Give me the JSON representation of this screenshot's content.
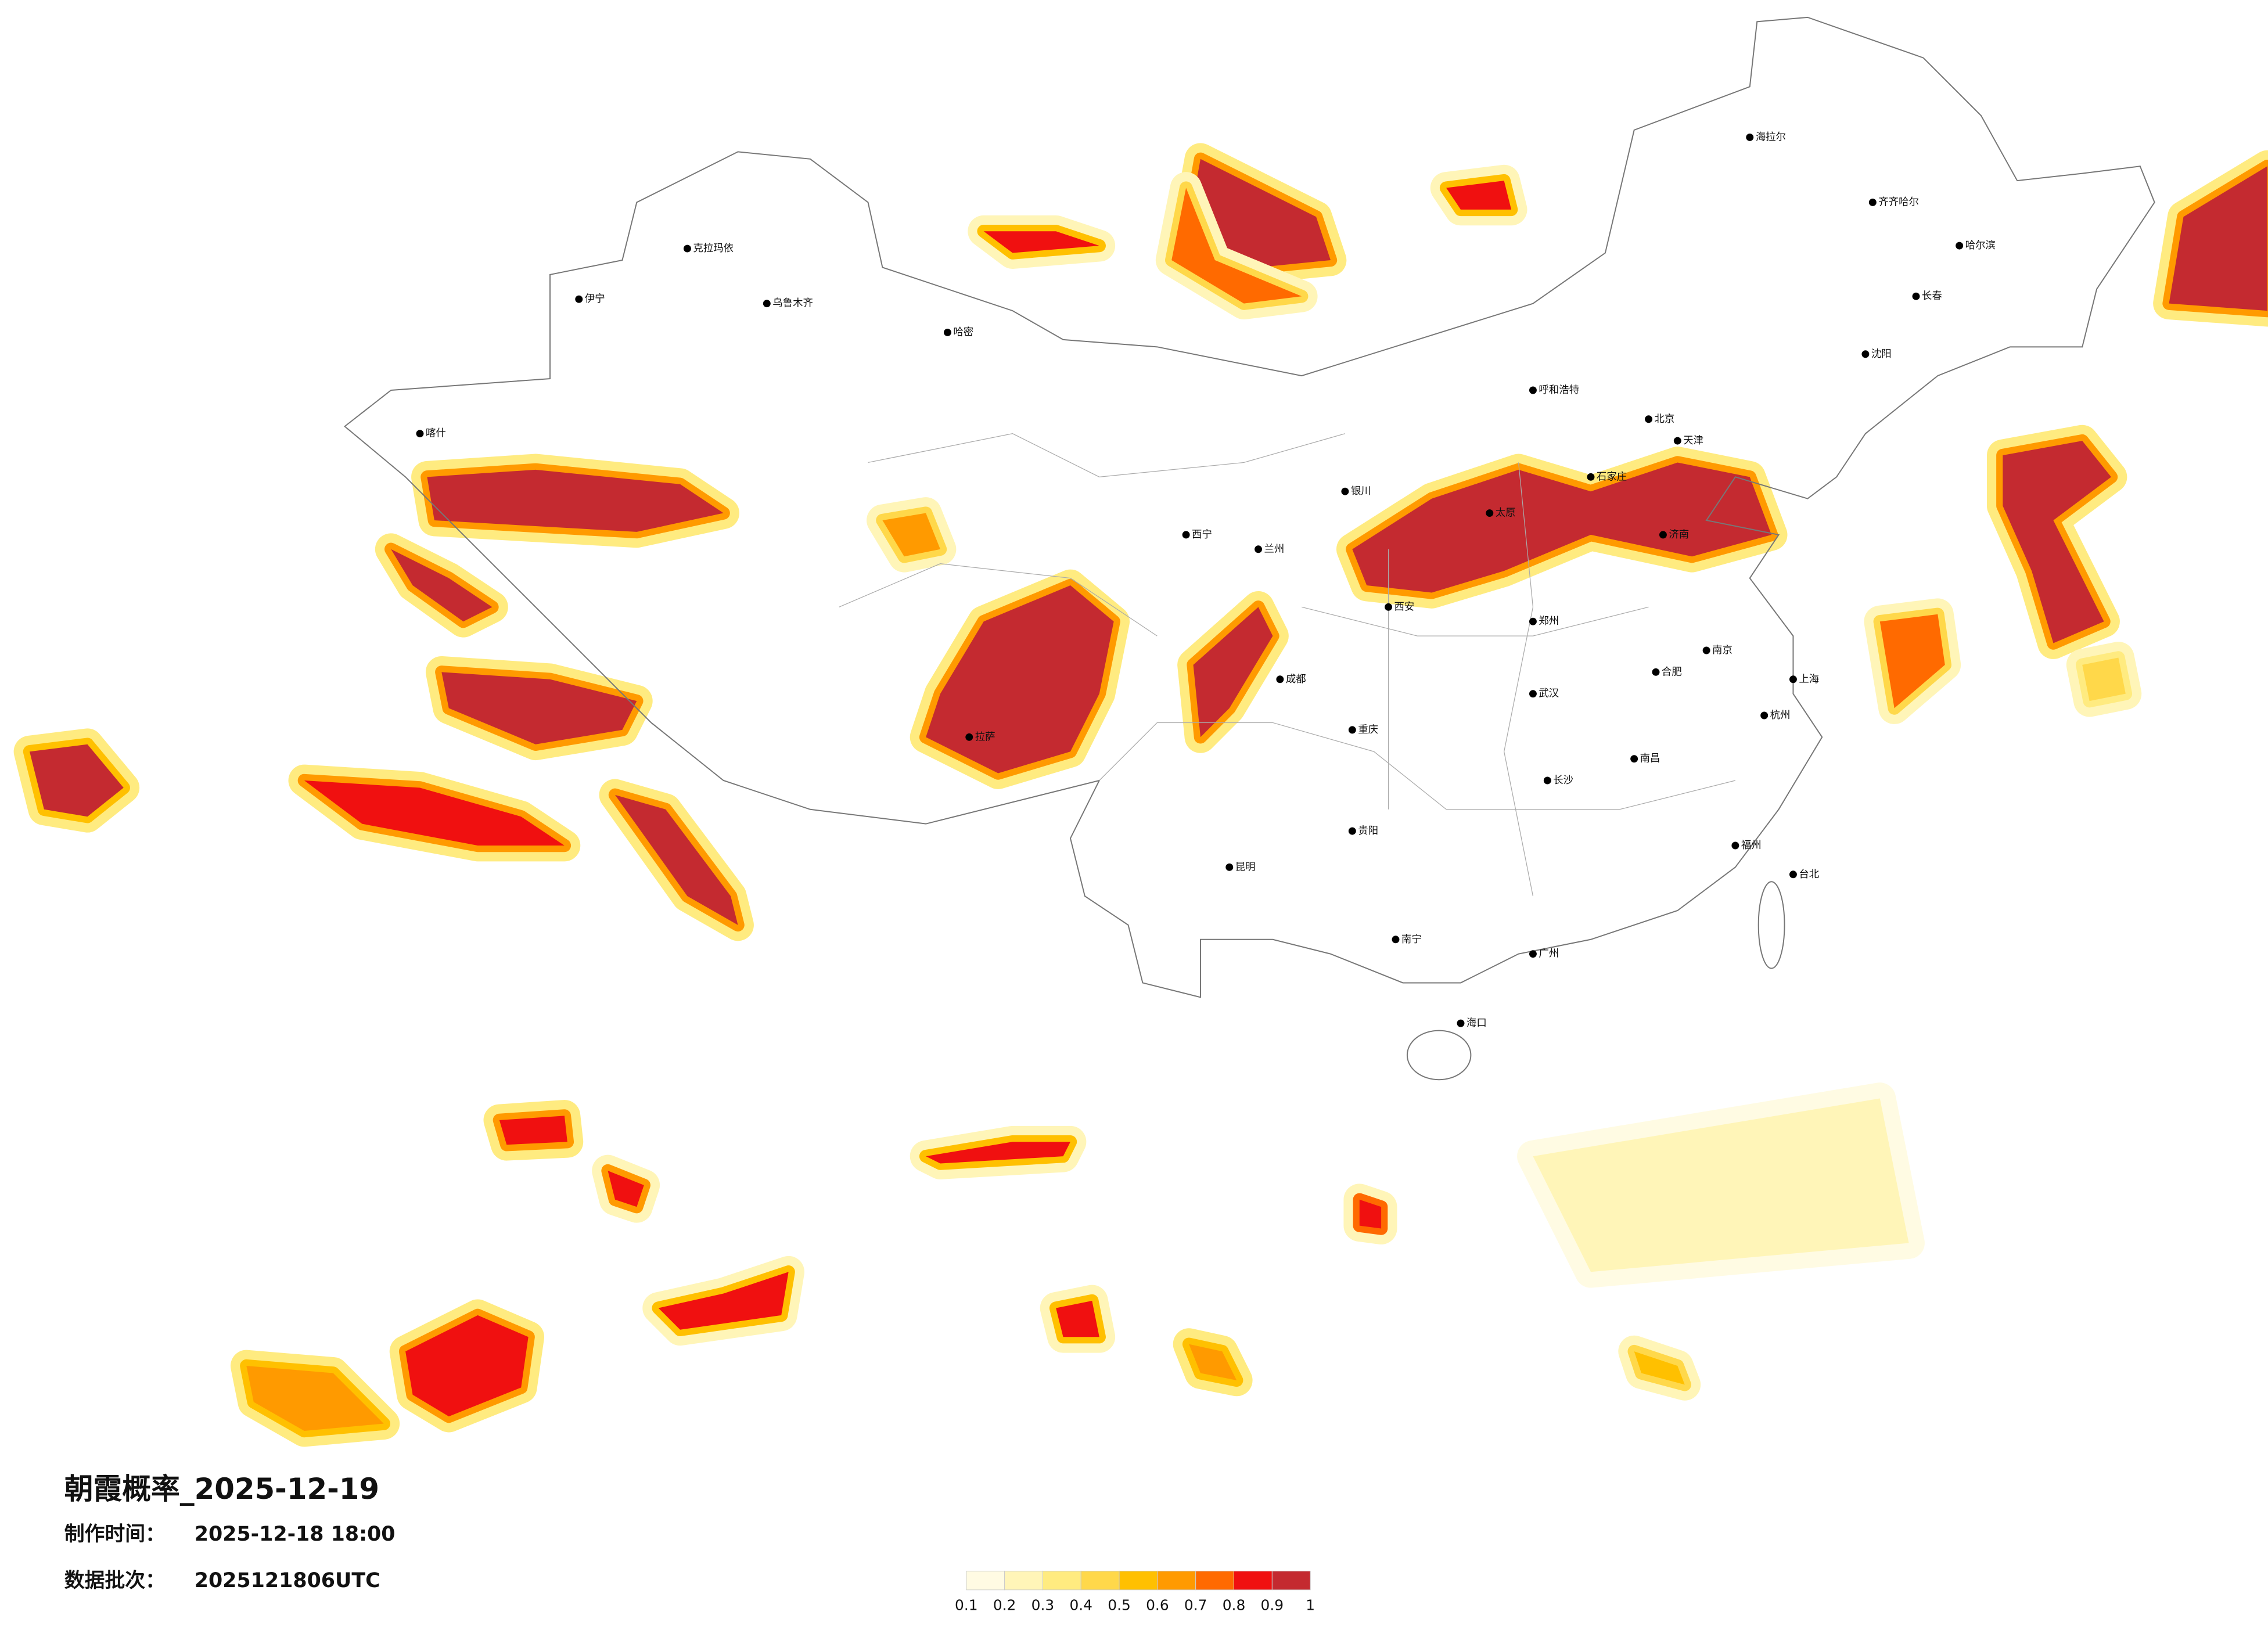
{
  "map": {
    "title": "朝霞概率_2025-12-19",
    "made_label": "制作时间：",
    "made_time": "2025-12-18 18:00",
    "batch_label": "数据批次：",
    "batch": "2025121806UTC",
    "legend": {
      "ticks": [
        0.1,
        0.2,
        0.3,
        0.4,
        0.5,
        0.6,
        0.7,
        0.8,
        0.9,
        1
      ],
      "colors": [
        "#fffbe3",
        "#fff5b8",
        "#ffeb80",
        "#ffd84a",
        "#ffc000",
        "#ff9a00",
        "#ff6a00",
        "#f01010",
        "#c42a30"
      ]
    },
    "cities": [
      "北京",
      "天津",
      "上海",
      "广州",
      "重庆",
      "成都",
      "武汉",
      "西安",
      "兰州",
      "乌鲁木齐",
      "拉萨",
      "哈尔滨",
      "长春",
      "沈阳",
      "呼和浩特",
      "银川",
      "西宁",
      "昆明",
      "贵阳",
      "南宁",
      "长沙",
      "南昌",
      "福州",
      "杭州",
      "南京",
      "合肥",
      "郑州",
      "济南",
      "石家庄",
      "太原",
      "海口",
      "台北",
      "喀什",
      "伊宁",
      "哈密",
      "克拉玛依",
      "海拉尔",
      "齐齐哈尔"
    ]
  }
}
